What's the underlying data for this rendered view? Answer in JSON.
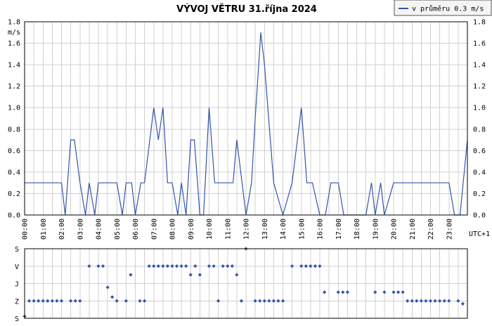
{
  "chart_data": [
    {
      "type": "line",
      "title": "VÝVOJ VĚTRU  31.října 2024",
      "ylabel": "m/s",
      "xlabel": "UTC+1",
      "ylim": [
        0,
        1.8
      ],
      "y_ticks": [
        "0.0",
        "0.2",
        "0.4",
        "0.6",
        "0.8",
        "1.0",
        "1.2",
        "1.4",
        "1.6",
        "1.8"
      ],
      "y_ticks_right": true,
      "x_ticks": [
        "00:00",
        "01:00",
        "02:00",
        "03:00",
        "04:00",
        "05:00",
        "06:00",
        "07:00",
        "08:00",
        "09:00",
        "10:00",
        "11:00",
        "12:00",
        "13:00",
        "14:00",
        "15:00",
        "16:00",
        "17:00",
        "18:00",
        "19:00",
        "20:00",
        "21:00",
        "22:00",
        "23:00"
      ],
      "xlim_hours": [
        0,
        24
      ],
      "grid": true,
      "legend": {
        "entry": "v průměru 0.3 m/s",
        "placement": "top-right"
      },
      "series": [
        {
          "color": "#3355aa",
          "x": [
            0,
            1,
            2,
            2.2,
            2.5,
            2.7,
            3.0,
            3.3,
            3.5,
            3.8,
            4.0,
            5.0,
            5.3,
            5.5,
            5.8,
            6.0,
            6.3,
            6.5,
            7.0,
            7.25,
            7.5,
            7.75,
            8.0,
            8.3,
            8.5,
            8.75,
            9.0,
            9.2,
            9.5,
            9.7,
            10.0,
            10.3,
            11.0,
            11.3,
            11.5,
            12.0,
            12.3,
            12.5,
            12.8,
            13.0,
            13.5,
            14.0,
            14.5,
            15.0,
            15.3,
            15.6,
            16.0,
            16.3,
            16.6,
            17.0,
            17.3,
            17.6,
            18.0,
            18.5,
            18.8,
            19.0,
            19.3,
            19.5,
            20.0,
            20.5,
            21.0,
            21.5,
            22.0,
            22.5,
            23.0,
            23.3,
            23.6,
            24.0
          ],
          "y": [
            0.3,
            0.3,
            0.3,
            0.0,
            0.7,
            0.7,
            0.3,
            0.0,
            0.3,
            0.0,
            0.3,
            0.3,
            0.0,
            0.3,
            0.3,
            0.0,
            0.3,
            0.3,
            1.0,
            0.7,
            1.0,
            0.3,
            0.3,
            0.0,
            0.3,
            0.0,
            0.7,
            0.7,
            0.0,
            0.0,
            1.0,
            0.3,
            0.3,
            0.3,
            0.7,
            0.0,
            0.3,
            0.9,
            1.7,
            1.4,
            0.3,
            0.0,
            0.3,
            1.0,
            0.3,
            0.3,
            0.0,
            0.0,
            0.3,
            0.3,
            0.0,
            0.0,
            0.0,
            0.0,
            0.3,
            0.0,
            0.3,
            0.0,
            0.3,
            0.3,
            0.3,
            0.3,
            0.3,
            0.3,
            0.3,
            0.0,
            0.0,
            0.7
          ]
        }
      ]
    },
    {
      "type": "scatter",
      "y_categories": [
        "S",
        "V",
        "J",
        "Z",
        "S"
      ],
      "grid": true,
      "series": [
        {
          "color": "#3355aa",
          "x": [
            0.0,
            0.25,
            0.5,
            0.75,
            1.0,
            1.25,
            1.5,
            1.75,
            2.0,
            2.5,
            2.75,
            3.0,
            3.5,
            4.0,
            4.25,
            4.5,
            4.75,
            5.0,
            5.5,
            5.75,
            6.25,
            6.5,
            6.75,
            7.0,
            7.25,
            7.5,
            7.75,
            8.0,
            8.25,
            8.5,
            8.75,
            9.0,
            9.25,
            9.5,
            10.0,
            10.25,
            10.5,
            10.75,
            11.0,
            11.25,
            11.5,
            11.75,
            12.0,
            12.5,
            12.75,
            13.0,
            13.25,
            13.5,
            13.75,
            14.0,
            14.5,
            15.0,
            15.25,
            15.5,
            15.75,
            16.0,
            16.25,
            17.0,
            17.25,
            17.5,
            19.0,
            19.5,
            20.0,
            20.25,
            20.5,
            20.75,
            21.0,
            21.25,
            21.5,
            21.75,
            22.0,
            22.25,
            22.5,
            22.75,
            23.0,
            23.5,
            23.75
          ],
          "y": [
            350,
            270,
            270,
            270,
            270,
            270,
            270,
            270,
            270,
            270,
            270,
            270,
            90,
            90,
            90,
            200,
            250,
            270,
            270,
            135,
            270,
            270,
            90,
            90,
            90,
            90,
            90,
            90,
            90,
            90,
            90,
            135,
            90,
            135,
            90,
            90,
            270,
            90,
            90,
            90,
            135,
            270,
            0,
            270,
            270,
            270,
            270,
            270,
            270,
            270,
            90,
            90,
            90,
            90,
            90,
            90,
            225,
            225,
            225,
            225,
            225,
            225,
            225,
            225,
            225,
            270,
            270,
            270,
            270,
            270,
            270,
            270,
            270,
            270,
            270,
            270,
            285
          ]
        }
      ]
    }
  ]
}
